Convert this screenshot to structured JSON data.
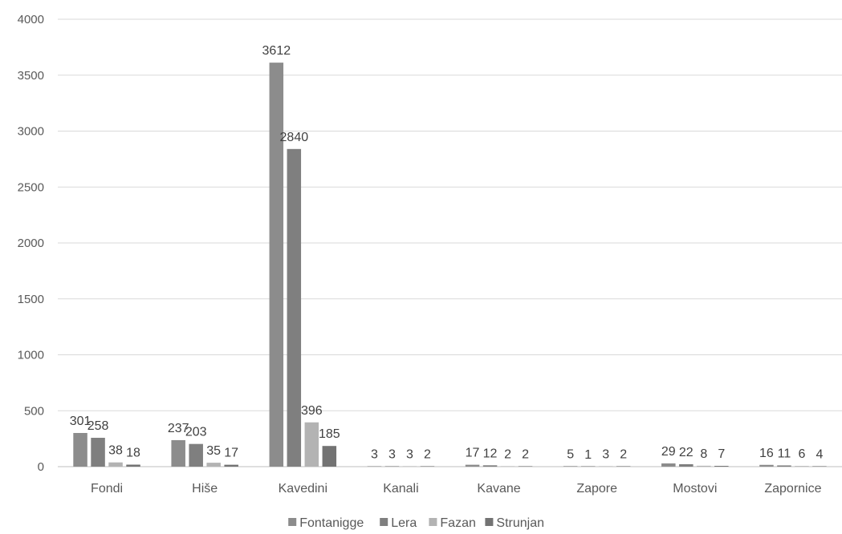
{
  "chart_data": {
    "type": "bar",
    "title": "",
    "xlabel": "",
    "ylabel": "",
    "ylim": [
      0,
      4000
    ],
    "yticks": [
      0,
      500,
      1000,
      1500,
      2000,
      2500,
      3000,
      3500,
      4000
    ],
    "grid": true,
    "legend_position": "bottom",
    "categories": [
      "Fondi",
      "Hiše",
      "Kavedini",
      "Kanali",
      "Kavane",
      "Zapore",
      "Mostovi",
      "Zapornice"
    ],
    "series": [
      {
        "name": "Fontanigge",
        "color": "#8c8c8c",
        "values": [
          301,
          237,
          3612,
          3,
          17,
          5,
          29,
          16
        ]
      },
      {
        "name": "Lera",
        "color": "#7f7f7f",
        "values": [
          258,
          203,
          2840,
          3,
          12,
          1,
          22,
          11
        ]
      },
      {
        "name": "Fazan",
        "color": "#b3b3b3",
        "values": [
          38,
          35,
          396,
          3,
          2,
          3,
          8,
          6
        ]
      },
      {
        "name": "Strunjan",
        "color": "#737373",
        "values": [
          18,
          17,
          185,
          2,
          2,
          2,
          7,
          4
        ]
      }
    ]
  }
}
